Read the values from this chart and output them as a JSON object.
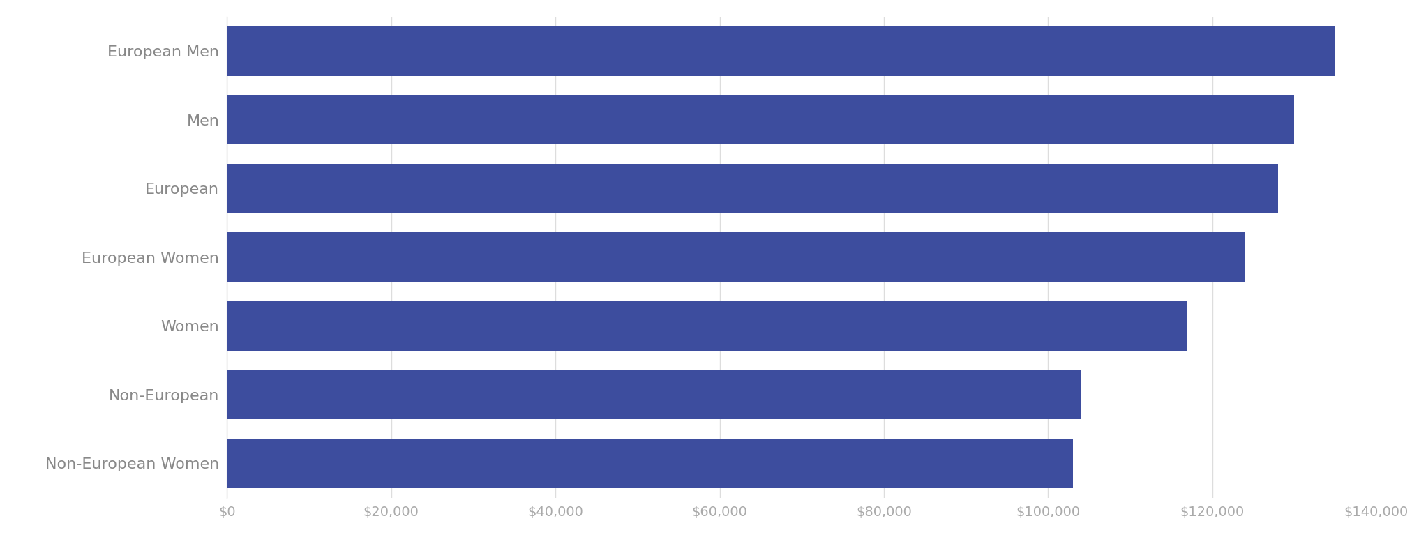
{
  "categories": [
    "Non-European Women",
    "Non-European",
    "Women",
    "European Women",
    "European",
    "Men",
    "European Men"
  ],
  "values": [
    103000,
    104000,
    117000,
    124000,
    128000,
    130000,
    135000
  ],
  "bar_color": "#3d4d9e",
  "background_color": "#ffffff",
  "xlim": [
    0,
    140000
  ],
  "xticks": [
    0,
    20000,
    40000,
    60000,
    80000,
    100000,
    120000,
    140000
  ],
  "tick_label_color": "#aaaaaa",
  "grid_color": "#dddddd",
  "label_color": "#888888",
  "figsize": [
    20.34,
    7.93
  ],
  "dpi": 100,
  "bar_height": 0.72,
  "label_fontsize": 16,
  "tick_fontsize": 14
}
